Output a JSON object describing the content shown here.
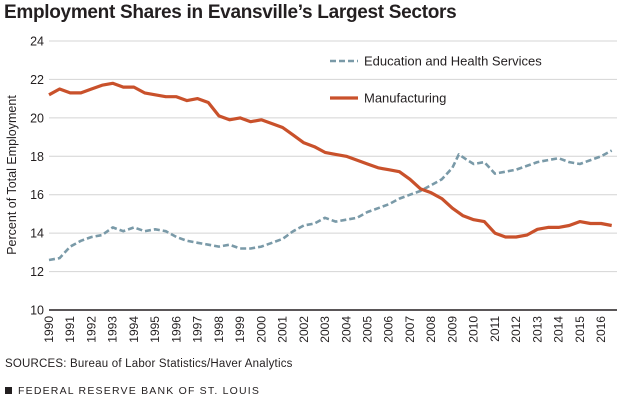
{
  "chart_data": {
    "type": "line",
    "title": "Employment Shares in Evansville’s Largest Sectors",
    "ylabel": "Percent of Total Employment",
    "xlabel": "",
    "ylim": [
      10,
      24
    ],
    "xlim": [
      1990,
      2016.75
    ],
    "yticks": [
      10,
      12,
      14,
      16,
      18,
      20,
      22,
      24
    ],
    "xticks": [
      "1990",
      "1991",
      "1992",
      "1993",
      "1994",
      "1995",
      "1996",
      "1997",
      "1998",
      "1999",
      "2000",
      "2001",
      "2002",
      "2003",
      "2004",
      "2005",
      "2006",
      "2007",
      "2008",
      "2009",
      "2010",
      "2011",
      "2012",
      "2013",
      "2014",
      "2015",
      "2016"
    ],
    "grid": true,
    "legend_position": "top-right",
    "series": [
      {
        "name": "Education and Health Services",
        "color": "#7a9aa8",
        "style": "dashed",
        "x": [
          1990.0,
          1990.5,
          1991.0,
          1991.5,
          1992.0,
          1992.5,
          1993.0,
          1993.5,
          1994.0,
          1994.5,
          1995.0,
          1995.5,
          1996.0,
          1996.5,
          1997.0,
          1997.5,
          1998.0,
          1998.5,
          1999.0,
          1999.5,
          2000.0,
          2000.5,
          2001.0,
          2001.5,
          2002.0,
          2002.5,
          2003.0,
          2003.5,
          2004.0,
          2004.5,
          2005.0,
          2005.5,
          2006.0,
          2006.5,
          2007.0,
          2007.5,
          2008.0,
          2008.5,
          2009.0,
          2009.3,
          2009.7,
          2010.0,
          2010.5,
          2011.0,
          2011.5,
          2012.0,
          2012.5,
          2013.0,
          2013.5,
          2014.0,
          2014.5,
          2015.0,
          2015.5,
          2016.0,
          2016.5
        ],
        "y": [
          12.6,
          12.7,
          13.3,
          13.6,
          13.8,
          13.9,
          14.3,
          14.1,
          14.3,
          14.1,
          14.2,
          14.1,
          13.8,
          13.6,
          13.5,
          13.4,
          13.3,
          13.4,
          13.2,
          13.2,
          13.3,
          13.5,
          13.7,
          14.1,
          14.4,
          14.5,
          14.8,
          14.6,
          14.7,
          14.8,
          15.1,
          15.3,
          15.5,
          15.8,
          16.0,
          16.2,
          16.5,
          16.8,
          17.4,
          18.1,
          17.8,
          17.6,
          17.7,
          17.1,
          17.2,
          17.3,
          17.5,
          17.7,
          17.8,
          17.9,
          17.7,
          17.6,
          17.8,
          18.0,
          18.3
        ]
      },
      {
        "name": "Manufacturing",
        "color": "#c9512b",
        "style": "solid",
        "x": [
          1990.0,
          1990.5,
          1991.0,
          1991.5,
          1992.0,
          1992.5,
          1993.0,
          1993.5,
          1994.0,
          1994.5,
          1995.0,
          1995.5,
          1996.0,
          1996.5,
          1997.0,
          1997.5,
          1998.0,
          1998.5,
          1999.0,
          1999.5,
          2000.0,
          2000.5,
          2001.0,
          2001.5,
          2002.0,
          2002.5,
          2003.0,
          2003.5,
          2004.0,
          2004.5,
          2005.0,
          2005.5,
          2006.0,
          2006.5,
          2007.0,
          2007.5,
          2008.0,
          2008.5,
          2009.0,
          2009.5,
          2010.0,
          2010.5,
          2011.0,
          2011.5,
          2012.0,
          2012.5,
          2013.0,
          2013.5,
          2014.0,
          2014.5,
          2015.0,
          2015.5,
          2016.0,
          2016.5
        ],
        "y": [
          21.2,
          21.5,
          21.3,
          21.3,
          21.5,
          21.7,
          21.8,
          21.6,
          21.6,
          21.3,
          21.2,
          21.1,
          21.1,
          20.9,
          21.0,
          20.8,
          20.1,
          19.9,
          20.0,
          19.8,
          19.9,
          19.7,
          19.5,
          19.1,
          18.7,
          18.5,
          18.2,
          18.1,
          18.0,
          17.8,
          17.6,
          17.4,
          17.3,
          17.2,
          16.8,
          16.3,
          16.1,
          15.8,
          15.3,
          14.9,
          14.7,
          14.6,
          14.0,
          13.8,
          13.8,
          13.9,
          14.2,
          14.3,
          14.3,
          14.4,
          14.6,
          14.5,
          14.5,
          14.4
        ]
      }
    ]
  },
  "sources": "SOURCES: Bureau of Labor Statistics/Haver Analytics",
  "footer": "FEDERAL RESERVE BANK OF ST. LOUIS"
}
